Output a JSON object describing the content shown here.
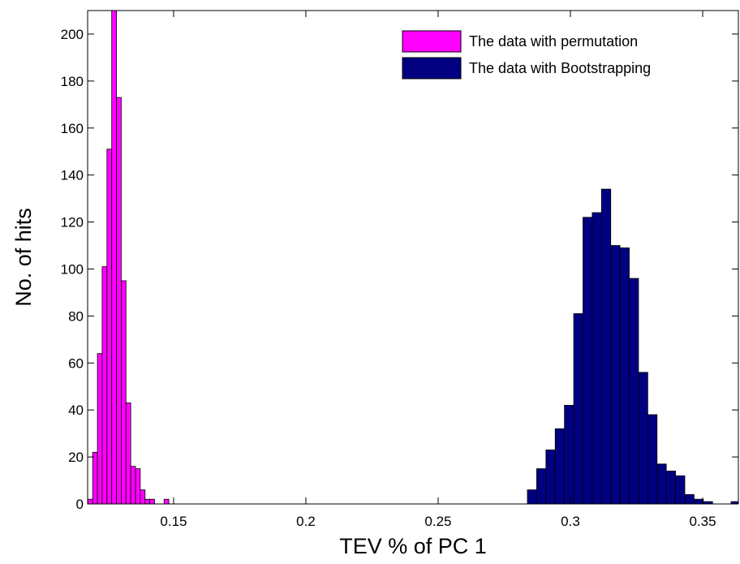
{
  "chart_data": {
    "type": "bar",
    "subtype": "histogram",
    "xlabel": "TEV % of PC 1",
    "ylabel": "No. of hits",
    "xlim": [
      0.1175,
      0.3635
    ],
    "ylim": [
      0,
      210
    ],
    "xticks": [
      "0.15",
      "0.2",
      "0.25",
      "0.3",
      "0.35"
    ],
    "xtick_values": [
      0.15,
      0.2,
      0.25,
      0.3,
      0.35
    ],
    "yticks": [
      "0",
      "20",
      "40",
      "60",
      "80",
      "100",
      "120",
      "140",
      "160",
      "180",
      "200"
    ],
    "ytick_values": [
      0,
      20,
      40,
      60,
      80,
      100,
      120,
      140,
      160,
      180,
      200
    ],
    "grid": false,
    "legend_position": "top-right",
    "series": [
      {
        "name": "The data with permutation",
        "color": "#ff00ff",
        "bin_width": 0.0018,
        "bin_centers": [
          0.1185,
          0.1203,
          0.1221,
          0.1239,
          0.1257,
          0.1275,
          0.1293,
          0.1311,
          0.1329,
          0.1347,
          0.1365,
          0.1383,
          0.1401,
          0.1419,
          0.1437,
          0.1455,
          0.1473
        ],
        "values": [
          2,
          22,
          64,
          101,
          151,
          210,
          173,
          95,
          43,
          16,
          15,
          6,
          2,
          2,
          0,
          0,
          2
        ]
      },
      {
        "name": "The data with Bootstrapping",
        "color": "#000080",
        "bin_width": 0.0035,
        "bin_centers": [
          0.2855,
          0.289,
          0.2925,
          0.296,
          0.2995,
          0.303,
          0.3065,
          0.31,
          0.3135,
          0.317,
          0.3205,
          0.324,
          0.3275,
          0.331,
          0.3345,
          0.338,
          0.3415,
          0.345,
          0.3485,
          0.352,
          0.3555,
          0.3625
        ],
        "values": [
          6,
          15,
          23,
          32,
          42,
          81,
          122,
          124,
          134,
          110,
          109,
          96,
          56,
          38,
          17,
          14,
          12,
          4,
          2,
          1,
          0,
          1
        ]
      }
    ]
  }
}
